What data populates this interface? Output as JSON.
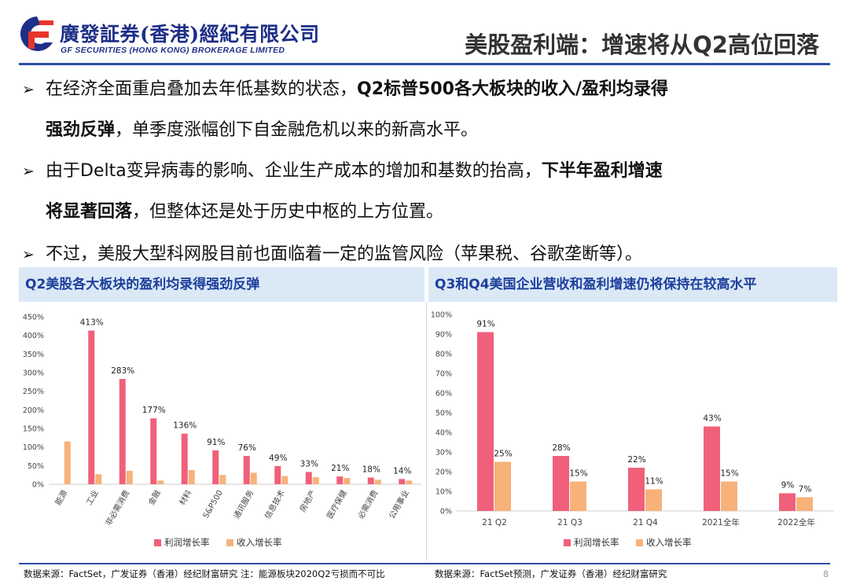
{
  "header": {
    "logo_cn": "廣發証券(香港)經紀有限公司",
    "logo_en": "GF SECURITIES (HONG KONG) BROKERAGE LIMITED",
    "title": "美股盈利端：增速将从Q2高位回落",
    "brand_color": "#1e2f88",
    "accent_color": "#e8352b"
  },
  "bullets": [
    {
      "arrow": "➢",
      "line1_plain": "在经济全面重启叠加去年低基数的状态，",
      "line1_bold": "Q2标普500各大板块的收入/盈利均录得",
      "line2_bold": "强劲反弹",
      "line2_plain": "，单季度涨幅创下自金融危机以来的新高水平。"
    },
    {
      "arrow": "➢",
      "line1_plain": "由于Delta变异病毒的影响、企业生产成本的增加和基数的抬高，",
      "line1_bold": "下半年盈利增速",
      "line2_bold": "将显著回落",
      "line2_plain": "，但整体还是处于历史中枢的上方位置。"
    },
    {
      "arrow": "➢",
      "text": "不过，美股大型科网股目前也面临着一定的监管风险（苹果税、谷歌垄断等）。"
    }
  ],
  "chart_data": [
    {
      "type": "bar",
      "title": "Q2美股各大板块的盈利均录得强劲反弹",
      "categories": [
        "能源",
        "工业",
        "非必需消费",
        "金融",
        "材料",
        "S&P500",
        "通讯服务",
        "信息技术",
        "房地产",
        "医疗保健",
        "必需消费",
        "公用事业"
      ],
      "series": [
        {
          "name": "利润增长率",
          "color": "#f0607a",
          "values": [
            null,
            413,
            283,
            177,
            136,
            91,
            76,
            49,
            33,
            21,
            18,
            14
          ],
          "labels": [
            "",
            "413%",
            "283%",
            "177%",
            "136%",
            "91%",
            "76%",
            "49%",
            "33%",
            "21%",
            "18%",
            "14%"
          ]
        },
        {
          "name": "收入增长率",
          "color": "#f7b27a",
          "values": [
            115,
            27,
            36,
            10,
            38,
            25,
            31,
            22,
            19,
            17,
            12,
            10
          ]
        }
      ],
      "yticks": [
        "0%",
        "50%",
        "100%",
        "150%",
        "200%",
        "250%",
        "300%",
        "350%",
        "400%",
        "450%"
      ],
      "ylim": [
        0,
        450
      ],
      "grid": false,
      "legend_position": "bottom",
      "source": "数据来源：FactSet，广发证券（香港）经纪财富研究    注：能源板块2020Q2亏损而不可比"
    },
    {
      "type": "bar",
      "title": "Q3和Q4美国企业营收和盈利增速仍将保持在较高水平",
      "categories": [
        "21 Q2",
        "21 Q3",
        "21 Q4",
        "2021全年",
        "2022全年"
      ],
      "series": [
        {
          "name": "利润增长率",
          "color": "#f0607a",
          "values": [
            91,
            28,
            22,
            43,
            9
          ],
          "labels": [
            "91%",
            "28%",
            "22%",
            "43%",
            "9%"
          ]
        },
        {
          "name": "收入增长率",
          "color": "#f7b27a",
          "values": [
            25,
            15,
            11,
            15,
            7
          ],
          "labels": [
            "25%",
            "15%",
            "11%",
            "15%",
            "7%"
          ]
        }
      ],
      "yticks": [
        "0%",
        "10%",
        "20%",
        "30%",
        "40%",
        "50%",
        "60%",
        "70%",
        "80%",
        "90%",
        "100%"
      ],
      "ylim": [
        0,
        100
      ],
      "grid": false,
      "legend_position": "bottom",
      "source": "数据来源：FactSet预测，广发证券（香港）经纪财富研究"
    }
  ],
  "page_number": "8"
}
